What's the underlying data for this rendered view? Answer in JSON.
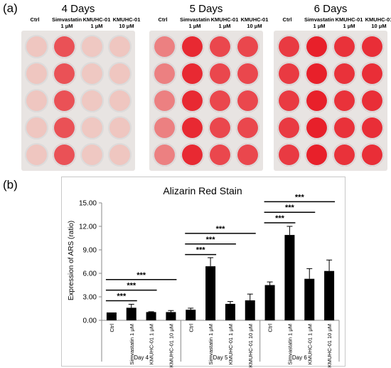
{
  "panel_a": {
    "label": "(a)",
    "plates": [
      {
        "title": "4 Days",
        "stain": [
          0.05,
          0.72,
          0.04,
          0.05
        ]
      },
      {
        "title": "5 Days",
        "stain": [
          0.45,
          0.95,
          0.78,
          0.78
        ]
      },
      {
        "title": "6 Days",
        "stain": [
          0.85,
          1.0,
          0.9,
          0.92
        ]
      }
    ],
    "columns": [
      {
        "line1": "Ctrl",
        "line2": ""
      },
      {
        "line1": "Simvastatin",
        "line2": "1 μM"
      },
      {
        "line1": "KMUHC-01",
        "line2": "1 μM"
      },
      {
        "line1": "KMUHC-01",
        "line2": "10 μM"
      }
    ],
    "colors": {
      "plate_bg": "#e8e4e2",
      "well_unstained": "#efcfc8",
      "stain": "#e8202a"
    }
  },
  "panel_b": {
    "label": "(b)"
  },
  "chart_data": {
    "type": "bar",
    "title": "Alizarin Red Stain",
    "xlabel": "",
    "ylabel": "Expression of ARS (ratio)",
    "ylim": [
      0,
      15
    ],
    "yticks": [
      "0.00",
      "3.00",
      "6.00",
      "9.00",
      "12.00",
      "15.00"
    ],
    "grid": false,
    "bar_color": "#000000",
    "groups": [
      {
        "name": "Day 4",
        "categories": [
          "Ctrl",
          "Simvastatin 1 μM",
          "KMUHC-01 1 μM",
          "KMUHC-01 10 μM"
        ],
        "values": [
          1.0,
          1.6,
          1.05,
          1.05
        ],
        "errors": [
          0.0,
          0.45,
          0.05,
          0.2
        ]
      },
      {
        "name": "Day 5",
        "categories": [
          "Ctrl",
          "Simvastatin 1 μM",
          "KMUHC-01 1 μM",
          "KMUHC-01 10 μM"
        ],
        "values": [
          1.35,
          6.9,
          2.1,
          2.55
        ],
        "errors": [
          0.2,
          1.1,
          0.3,
          0.8
        ]
      },
      {
        "name": "Day 6",
        "categories": [
          "Ctrl",
          "Simvastatin 1 μM",
          "KMUHC-01 1 μM",
          "KMUHC-01 10 μM"
        ],
        "values": [
          4.5,
          10.9,
          5.3,
          6.3
        ],
        "errors": [
          0.4,
          1.1,
          1.3,
          1.4
        ]
      }
    ],
    "significance": [
      {
        "group": "Day 4",
        "from": "Ctrl",
        "to": "Simvastatin 1 μM",
        "level": 2.5,
        "label": "***"
      },
      {
        "group": "Day 4",
        "from": "Ctrl",
        "to": "KMUHC-01 1 μM",
        "level": 3.85,
        "label": "***"
      },
      {
        "group": "Day 4",
        "from": "Ctrl",
        "to": "KMUHC-01 10 μM",
        "level": 5.2,
        "label": "***"
      },
      {
        "group": "Day 5",
        "from": "Ctrl",
        "to": "Simvastatin 1 μM",
        "level": 8.4,
        "label": "***"
      },
      {
        "group": "Day 5",
        "from": "Ctrl",
        "to": "KMUHC-01 1 μM",
        "level": 9.75,
        "label": "***"
      },
      {
        "group": "Day 5",
        "from": "Ctrl",
        "to": "KMUHC-01 10 μM",
        "level": 11.1,
        "label": "***"
      },
      {
        "group": "Day 6",
        "from": "Ctrl",
        "to": "Simvastatin 1 μM",
        "level": 12.45,
        "label": "***"
      },
      {
        "group": "Day 6",
        "from": "Ctrl",
        "to": "KMUHC-01 1 μM",
        "level": 13.8,
        "label": "***"
      },
      {
        "group": "Day 6",
        "from": "Ctrl",
        "to": "KMUHC-01 10 μM",
        "level": 15.15,
        "label": "***"
      }
    ]
  }
}
